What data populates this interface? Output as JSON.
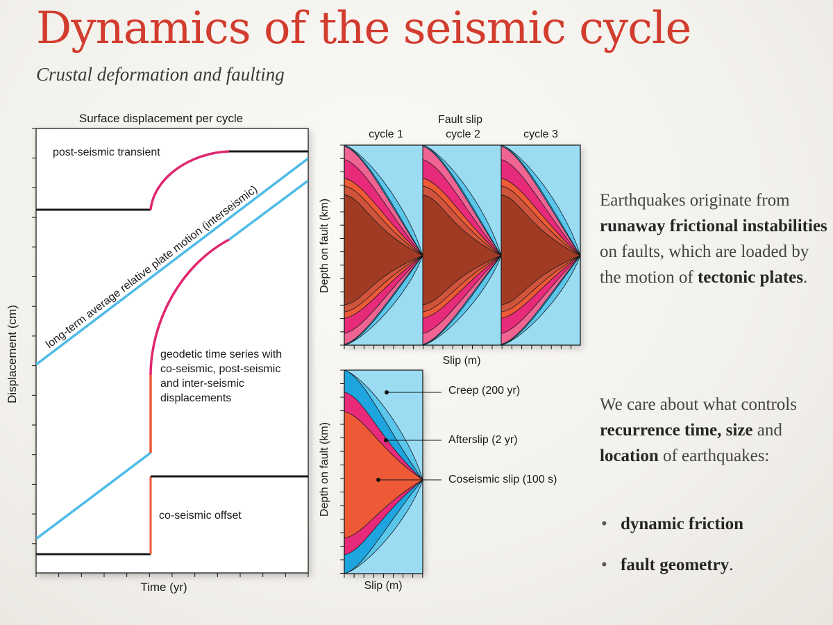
{
  "title": "Dynamics of the seismic cycle",
  "subtitle": "Crustal deformation and faulting",
  "left_chart": {
    "title": "Surface displacement per cycle",
    "ylabel": "Displacement (cm)",
    "xlabel": "Time (yr)",
    "labels": {
      "post_seismic": "post-seismic transient",
      "interseismic": "long-term average relative plate motion (interseismic)",
      "geodetic": [
        "geodetic time series with",
        "co-seismic, post-seismic",
        "and inter-seismic",
        "displacements"
      ],
      "coseismic": "co-seismic offset"
    },
    "colors": {
      "interseismic": "#4dbbe6",
      "postseismic": "#e0266e",
      "coseismic": "#ec5a36",
      "baseline": "#1a1a1a"
    }
  },
  "fault_slip": {
    "title": "Fault slip",
    "cycles": [
      "cycle 1",
      "cycle 2",
      "cycle 3"
    ],
    "ylabel": "Depth on fault (km)",
    "xlabel": "Slip (m)"
  },
  "legend_panel": {
    "ylabel": "Depth on fault (km)",
    "xlabel": "Slip (m)",
    "items": [
      {
        "label": "Creep (200 yr)",
        "color": "#1ea4df"
      },
      {
        "label": "Afterslip (2 yr)",
        "color": "#e72a79"
      },
      {
        "label": "Coseismic slip (100 s)",
        "color": "#ef5a36"
      }
    ]
  },
  "slip_colors": [
    "#9bdcf3",
    "#5bc6ec",
    "#1ea4df",
    "#f06493",
    "#e72a79",
    "#ef5a36",
    "#d0533b",
    "#a13b24"
  ],
  "intro_text": {
    "t1": "Earthquakes originate from ",
    "b1": "runaway frictional instabilities",
    "t2": " on faults, which are loaded by the motion of ",
    "b2": "tectonic plates",
    "t3": "."
  },
  "care_text": {
    "t1": "We care about what controls ",
    "b1": "recurrence time,",
    "t2": " ",
    "b2": "size",
    "t3": " and ",
    "b3": "location",
    "t4": " of earthquakes:"
  },
  "bullets": [
    {
      "text": "dynamic friction",
      "suffix": ""
    },
    {
      "text": "fault geometry",
      "suffix": "."
    }
  ],
  "bullet_char": "•"
}
